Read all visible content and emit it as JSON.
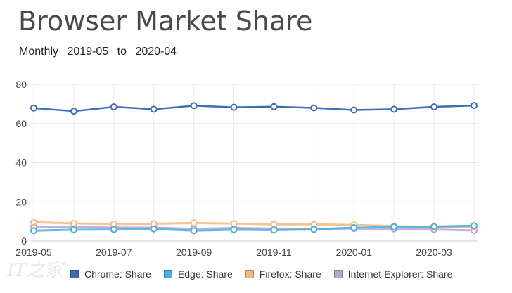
{
  "title": "Browser Market Share",
  "subtitle": {
    "period": "Monthly",
    "from": "2019-05",
    "to_word": "to",
    "to": "2020-04"
  },
  "chart_data": {
    "type": "line",
    "title": "Browser Market Share",
    "x": [
      "2019-05",
      "2019-06",
      "2019-07",
      "2019-08",
      "2019-09",
      "2019-10",
      "2019-11",
      "2019-12",
      "2020-01",
      "2020-02",
      "2020-03",
      "2020-04"
    ],
    "x_tick_labels": [
      "2019-05",
      "2019-07",
      "2019-09",
      "2019-11",
      "2020-01",
      "2020-03"
    ],
    "ylim": [
      0,
      80
    ],
    "y_ticks": [
      0,
      20,
      40,
      60,
      80
    ],
    "grid": true,
    "legend_position": "bottom",
    "series": [
      {
        "name": "Chrome: Share",
        "color": "#3d6cb9",
        "values": [
          67.9,
          66.3,
          68.5,
          67.3,
          69.1,
          68.3,
          68.6,
          68.0,
          66.9,
          67.3,
          68.5,
          69.2
        ]
      },
      {
        "name": "Edge: Share",
        "color": "#4aaee3",
        "values": [
          5.3,
          5.8,
          5.9,
          6.2,
          5.3,
          5.8,
          5.6,
          5.9,
          6.8,
          7.2,
          7.4,
          7.8
        ]
      },
      {
        "name": "Firefox: Share",
        "color": "#f5b87c",
        "values": [
          9.6,
          9.0,
          8.7,
          8.8,
          9.2,
          8.9,
          8.5,
          8.5,
          8.2,
          7.6,
          7.2,
          7.2
        ]
      },
      {
        "name": "Internet Explorer: Share",
        "color": "#b9a3d6",
        "values": [
          7.3,
          7.2,
          6.9,
          6.8,
          6.2,
          6.7,
          6.3,
          6.3,
          6.4,
          6.2,
          5.9,
          5.4
        ]
      }
    ]
  },
  "watermark": "IT之家"
}
